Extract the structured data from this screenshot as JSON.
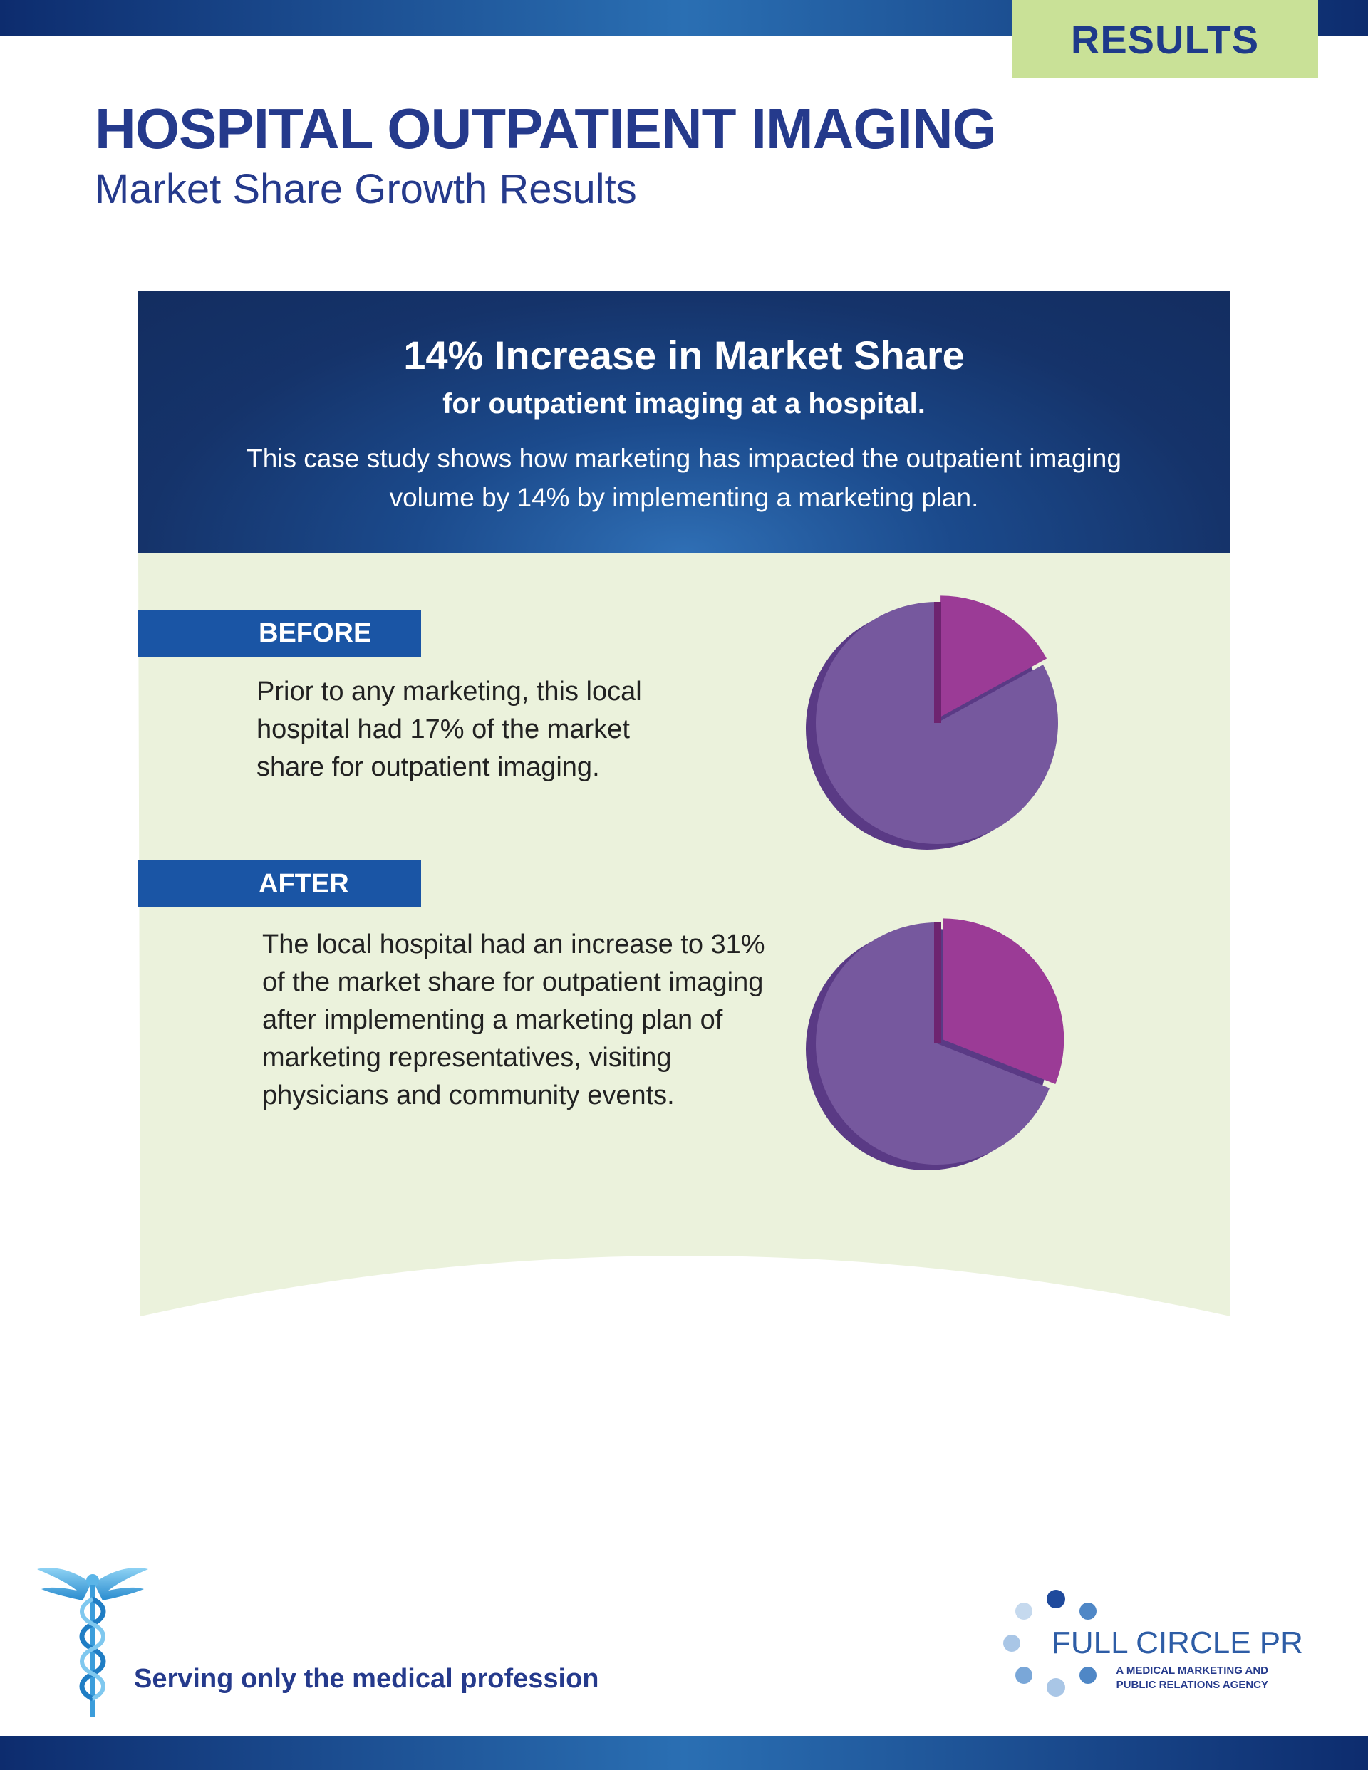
{
  "tab": {
    "label": "RESULTS"
  },
  "page": {
    "title": "HOSPITAL OUTPATIENT IMAGING",
    "subtitle": "Market Share Growth Results"
  },
  "header": {
    "headline": "14% Increase in Market Share",
    "subheadline": "for outpatient imaging at a hospital.",
    "body": "This case study shows how marketing has impacted the outpatient imaging volume by 14% by implementing a marketing plan."
  },
  "before": {
    "label": "BEFORE",
    "text": "Prior to any marketing, this local hospital had 17% of the market share for outpatient imaging."
  },
  "after": {
    "label": "AFTER",
    "text": "The local hospital had an increase to 31% of the market share for outpatient imaging after implementing a marketing plan of marketing representatives, visiting physicians and community events."
  },
  "chart_data": [
    {
      "type": "pie",
      "name": "before",
      "slices": [
        {
          "value": 17,
          "color": "#9b3b96"
        },
        {
          "value": 83,
          "color": "#76589e"
        }
      ]
    },
    {
      "type": "pie",
      "name": "after",
      "slices": [
        {
          "value": 31,
          "color": "#9b3b96"
        },
        {
          "value": 69,
          "color": "#76589e"
        }
      ]
    }
  ],
  "footer": {
    "tagline": "Serving only the medical profession",
    "logo_name": "FULL CIRCLE PR",
    "logo_tagline": "A MEDICAL MARKETING AND PUBLIC RELATIONS AGENCY"
  },
  "colors": {
    "navy": "#253a8c",
    "tab_green": "#c9e197",
    "panel_green": "#ebf2dc",
    "label_blue": "#1a55a5"
  }
}
